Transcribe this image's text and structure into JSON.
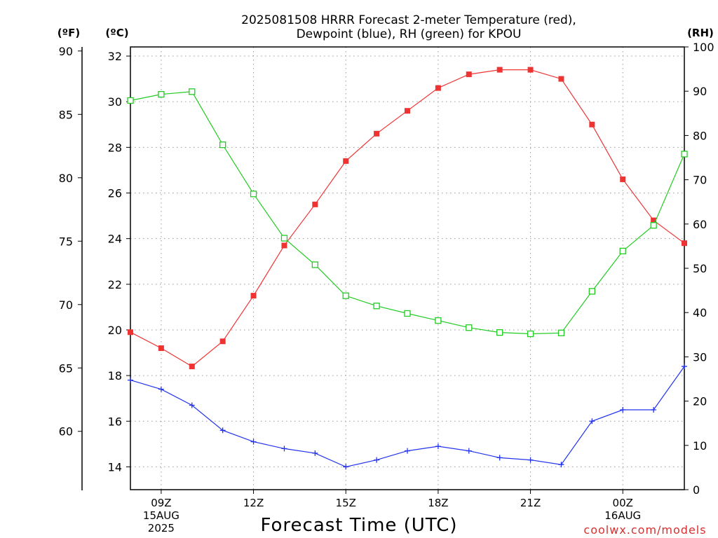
{
  "title_lines": [
    "2025081508 HRRR Forecast 2-meter Temperature (red),",
    "Dewpoint (blue), RH (green) for KPOU"
  ],
  "units": {
    "fahrenheit": "(ºF)",
    "celsius": "(ºC)",
    "rh": "(RH)"
  },
  "xlabel": "Forecast Time (UTC)",
  "credit": "coolwx.com/models",
  "colors": {
    "temperature": "#ee3333",
    "dewpoint": "#2233ee",
    "rh": "#22cc22",
    "grid": "#9a9a9a"
  },
  "chart_data": {
    "type": "line",
    "grid": true,
    "x_hours_utc": [
      "08Z",
      "09Z",
      "10Z",
      "11Z",
      "12Z",
      "13Z",
      "14Z",
      "15Z",
      "16Z",
      "17Z",
      "18Z",
      "19Z",
      "20Z",
      "21Z",
      "22Z",
      "23Z",
      "00Z",
      "01Z",
      "02Z"
    ],
    "x_ticks": [
      {
        "label": [
          "09Z",
          "15AUG",
          "2025"
        ],
        "index": 1
      },
      {
        "label": [
          "12Z"
        ],
        "index": 4
      },
      {
        "label": [
          "15Z"
        ],
        "index": 7
      },
      {
        "label": [
          "18Z"
        ],
        "index": 10
      },
      {
        "label": [
          "21Z"
        ],
        "index": 13
      },
      {
        "label": [
          "00Z",
          "16AUG"
        ],
        "index": 16
      }
    ],
    "x_range_index": [
      0,
      18
    ],
    "y_celsius": {
      "range": [
        13,
        32.4
      ],
      "ticks": [
        14,
        16,
        18,
        20,
        22,
        24,
        26,
        28,
        30,
        32
      ]
    },
    "y_fahrenheit": {
      "ticks": [
        60,
        65,
        70,
        75,
        80,
        85,
        90
      ]
    },
    "y_rh": {
      "range": [
        0,
        100
      ],
      "ticks": [
        0,
        10,
        20,
        30,
        40,
        50,
        60,
        70,
        80,
        90,
        100
      ]
    },
    "series": [
      {
        "key": "temperature",
        "axis": "celsius",
        "marker": "filled-square",
        "values": [
          19.9,
          19.2,
          18.4,
          19.5,
          21.5,
          23.7,
          25.5,
          27.4,
          28.6,
          29.6,
          30.6,
          31.2,
          31.4,
          31.4,
          31.0,
          29.0,
          26.6,
          24.8,
          23.8
        ]
      },
      {
        "key": "dewpoint",
        "axis": "celsius",
        "marker": "plus",
        "values": [
          17.8,
          17.4,
          16.7,
          15.6,
          15.1,
          14.8,
          14.6,
          14.0,
          14.3,
          14.7,
          14.9,
          14.7,
          14.4,
          14.3,
          14.1,
          16.0,
          16.5,
          16.5,
          18.4
        ]
      },
      {
        "key": "rh",
        "axis": "rh",
        "marker": "open-square",
        "values": [
          87.9,
          89.3,
          89.9,
          77.9,
          66.8,
          56.8,
          50.8,
          43.8,
          41.5,
          39.8,
          38.2,
          36.6,
          35.5,
          35.2,
          35.4,
          44.8,
          53.9,
          59.7,
          75.8
        ]
      }
    ]
  }
}
